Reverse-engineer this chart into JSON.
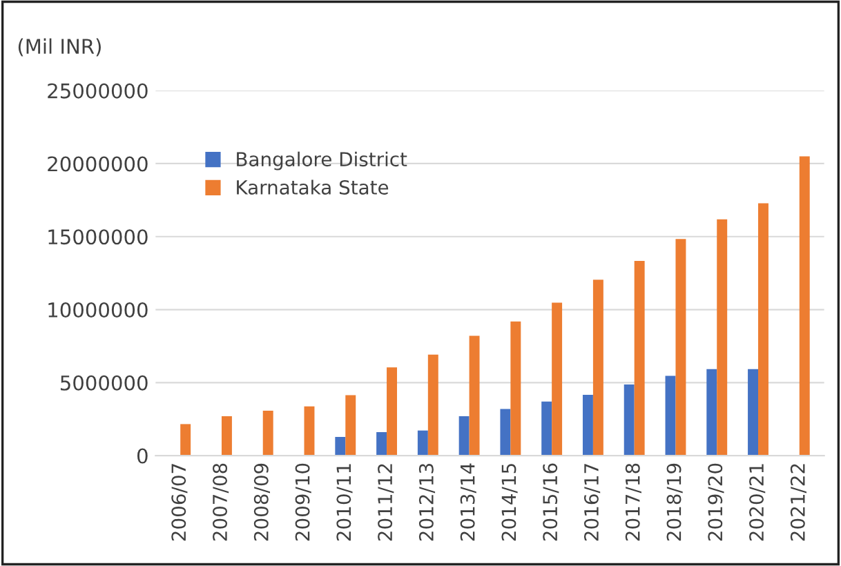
{
  "chart_data": {
    "type": "bar",
    "ylabel": "(Mil INR)",
    "categories": [
      "2006/07",
      "2007/08",
      "2008/09",
      "2009/10",
      "2010/11",
      "2011/12",
      "2012/13",
      "2013/14",
      "2014/15",
      "2015/16",
      "2016/17",
      "2017/18",
      "2018/19",
      "2019/20",
      "2020/21",
      "2021/22"
    ],
    "series": [
      {
        "name": "Bangalore District",
        "color": "#4472c4",
        "values": [
          null,
          null,
          null,
          null,
          1280000,
          1610000,
          1720000,
          2700000,
          3190000,
          3700000,
          4170000,
          4870000,
          5460000,
          5930000,
          5930000,
          null
        ]
      },
      {
        "name": "Karnataka State",
        "color": "#ed7d31",
        "values": [
          2160000,
          2700000,
          3080000,
          3370000,
          4140000,
          6040000,
          6920000,
          8200000,
          9190000,
          10470000,
          12050000,
          13330000,
          14830000,
          16180000,
          17280000,
          20500000
        ]
      }
    ],
    "ylim": [
      0,
      25000000
    ],
    "yticks": [
      0,
      5000000,
      10000000,
      15000000,
      20000000,
      25000000
    ],
    "grid": "y",
    "legend": "top left"
  }
}
